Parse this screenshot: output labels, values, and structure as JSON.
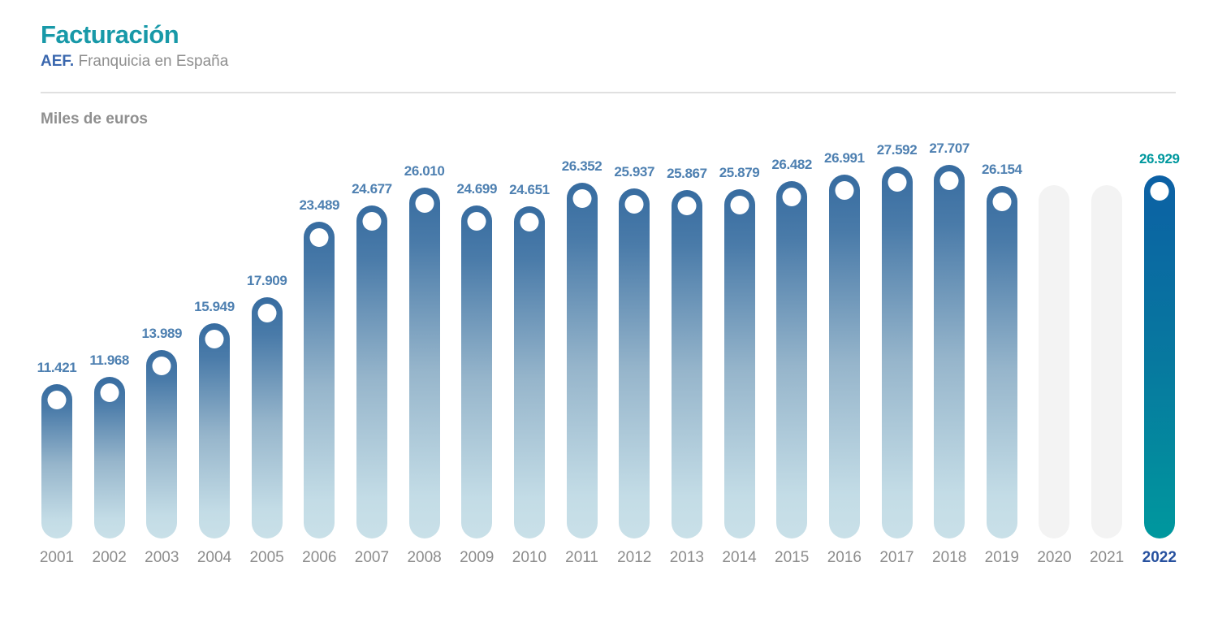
{
  "header": {
    "title": "Facturación",
    "subtitle_prefix": "AEF.",
    "subtitle_rest": " Franquicia en España"
  },
  "axis_note": "Miles de euros",
  "colors": {
    "title_teal": "#1899A8",
    "subtitle_blue": "#3A67AE",
    "gray_text": "#8F8F8F",
    "value_label_blue": "#4E80B1",
    "bar_top": "#376CA0",
    "bar_bottom": "#C9E0E8",
    "bar_2022_top": "#0C60A4",
    "bar_2022_bottom": "#00989E",
    "value_2022_teal": "#00989E",
    "year_2022_blue": "#27519F",
    "gray_bar": "#F3F3F3",
    "year_text": "#8C8C8C"
  },
  "chart_data": {
    "type": "bar",
    "title": "Facturación",
    "subtitle": "AEF. Franquicia en España",
    "ylabel": "Miles de euros",
    "xlabel": "",
    "grid": false,
    "legend": false,
    "max_value": 27707,
    "categories": [
      "2001",
      "2002",
      "2003",
      "2004",
      "2005",
      "2006",
      "2007",
      "2008",
      "2009",
      "2010",
      "2011",
      "2012",
      "2013",
      "2014",
      "2015",
      "2016",
      "2017",
      "2018",
      "2019",
      "2020",
      "2021",
      "2022"
    ],
    "values": [
      11421,
      11968,
      13989,
      15949,
      17909,
      23489,
      24677,
      26010,
      24699,
      24651,
      26352,
      25937,
      25867,
      25879,
      26482,
      26991,
      27592,
      27707,
      26154,
      null,
      null,
      26929
    ],
    "bars": [
      {
        "year": "2001",
        "label": "11.421",
        "value": 11421,
        "style": "blue"
      },
      {
        "year": "2002",
        "label": "11.968",
        "value": 11968,
        "style": "blue"
      },
      {
        "year": "2003",
        "label": "13.989",
        "value": 13989,
        "style": "blue"
      },
      {
        "year": "2004",
        "label": "15.949",
        "value": 15949,
        "style": "blue"
      },
      {
        "year": "2005",
        "label": "17.909",
        "value": 17909,
        "style": "blue"
      },
      {
        "year": "2006",
        "label": "23.489",
        "value": 23489,
        "style": "blue"
      },
      {
        "year": "2007",
        "label": "24.677",
        "value": 24677,
        "style": "blue"
      },
      {
        "year": "2008",
        "label": "26.010",
        "value": 26010,
        "style": "blue"
      },
      {
        "year": "2009",
        "label": "24.699",
        "value": 24699,
        "style": "blue"
      },
      {
        "year": "2010",
        "label": "24.651",
        "value": 24651,
        "style": "blue"
      },
      {
        "year": "2011",
        "label": "26.352",
        "value": 26352,
        "style": "blue"
      },
      {
        "year": "2012",
        "label": "25.937",
        "value": 25937,
        "style": "blue"
      },
      {
        "year": "2013",
        "label": "25.867",
        "value": 25867,
        "style": "blue"
      },
      {
        "year": "2014",
        "label": "25.879",
        "value": 25879,
        "style": "blue"
      },
      {
        "year": "2015",
        "label": "26.482",
        "value": 26482,
        "style": "blue"
      },
      {
        "year": "2016",
        "label": "26.991",
        "value": 26991,
        "style": "blue"
      },
      {
        "year": "2017",
        "label": "27.592",
        "value": 27592,
        "style": "blue"
      },
      {
        "year": "2018",
        "label": "27.707",
        "value": 27707,
        "style": "blue"
      },
      {
        "year": "2019",
        "label": "26.154",
        "value": 26154,
        "style": "blue"
      },
      {
        "year": "2020",
        "label": null,
        "value": null,
        "style": "gray",
        "height_ratio": 0.945
      },
      {
        "year": "2021",
        "label": null,
        "value": null,
        "style": "gray",
        "height_ratio": 0.945
      },
      {
        "year": "2022",
        "label": "26.929",
        "value": 26929,
        "style": "teal"
      }
    ]
  }
}
